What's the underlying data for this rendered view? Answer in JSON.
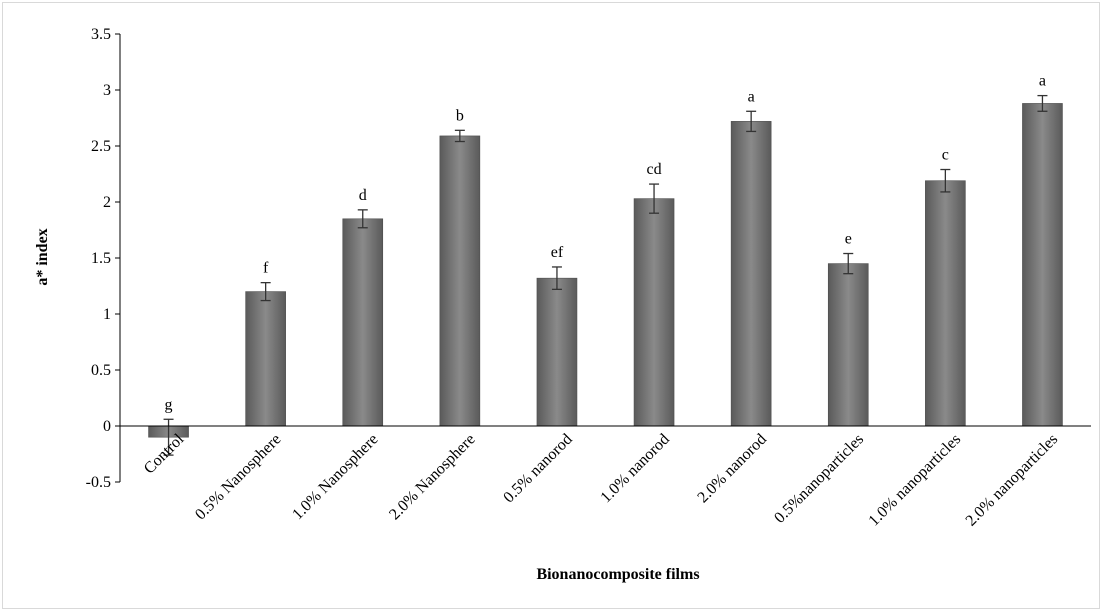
{
  "chart_data": {
    "type": "bar",
    "categories": [
      "Control",
      "0.5% Nanosphere",
      "1.0% Nanosphere",
      "2.0% Nanosphere",
      "0.5% nanorod",
      "1.0% nanorod",
      "2.0% nanorod",
      "0.5%nanoparticles",
      "1.0% nanoparticles",
      "2.0% nanoparticles"
    ],
    "values": [
      -0.1,
      1.2,
      1.85,
      2.59,
      1.32,
      2.03,
      2.72,
      1.45,
      2.19,
      2.88
    ],
    "errors": [
      0.16,
      0.08,
      0.08,
      0.05,
      0.1,
      0.13,
      0.09,
      0.09,
      0.1,
      0.07
    ],
    "significance_letters": [
      "g",
      "f",
      "d",
      "b",
      "ef",
      "cd",
      "a",
      "e",
      "c",
      "a"
    ],
    "xlabel": "Bionanocomposite films",
    "ylabel": "a* index",
    "ylim": [
      -0.5,
      3.5
    ],
    "yticks": [
      "-0.5",
      "0",
      "0.5",
      "1",
      "1.5",
      "2",
      "2.5",
      "3",
      "3.5"
    ],
    "bar_color": "#7f7f7f",
    "grid": false,
    "legend": "none"
  }
}
